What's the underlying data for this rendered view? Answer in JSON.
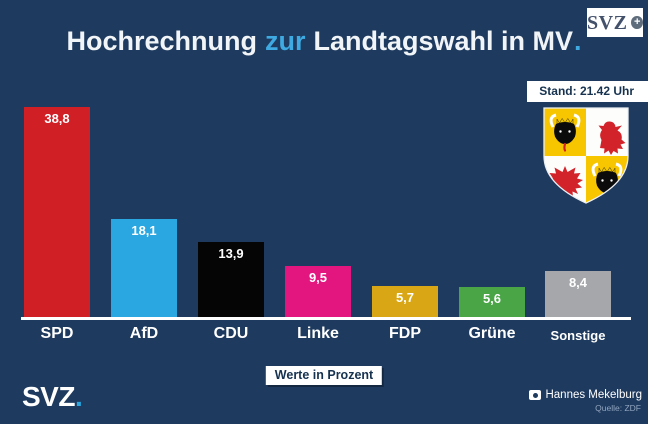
{
  "header": {
    "title": {
      "part1": "Hochrechnung",
      "highlight": "zur",
      "part2": "Landtagswahl in MV",
      "period": "."
    },
    "logo_box": {
      "text": "SVZ",
      "plus": "+"
    },
    "stand_badge": "Stand: 21.42 Uhr"
  },
  "chart_data": {
    "type": "bar",
    "title": "Hochrechnung zur Landtagswahl in MV.",
    "categories": [
      "SPD",
      "AfD",
      "CDU",
      "Linke",
      "FDP",
      "Grüne",
      "Sonstige"
    ],
    "values": [
      38.8,
      18.1,
      13.9,
      9.5,
      5.7,
      5.6,
      8.4
    ],
    "value_labels": [
      "38,8",
      "18,1",
      "13,9",
      "9,5",
      "5,7",
      "5,6",
      "8,4"
    ],
    "bar_colors": [
      "#d11f26",
      "#2aa6e0",
      "#050505",
      "#e3167f",
      "#d9a715",
      "#49a546",
      "#a5a7aa"
    ],
    "value_label_color": "#ffffff",
    "unit_note": "Werte in Prozent",
    "xlabel": "",
    "ylabel": "",
    "ylim": [
      0,
      40
    ],
    "grid": false,
    "legend": "none"
  },
  "emblem": {
    "name": "mecklenburg-vorpommern-coat-of-arms"
  },
  "footer": {
    "brand": {
      "text": "SVZ",
      "period": "."
    },
    "credit": {
      "photographer": "Hannes Mekelburg",
      "source": "Quelle: ZDF"
    }
  },
  "colors": {
    "background": "#1e3a5e",
    "accent_blue": "#3fa9e1",
    "badge_bg": "#ffffff",
    "badge_text": "#16324f",
    "axis_line": "#ffffff"
  }
}
